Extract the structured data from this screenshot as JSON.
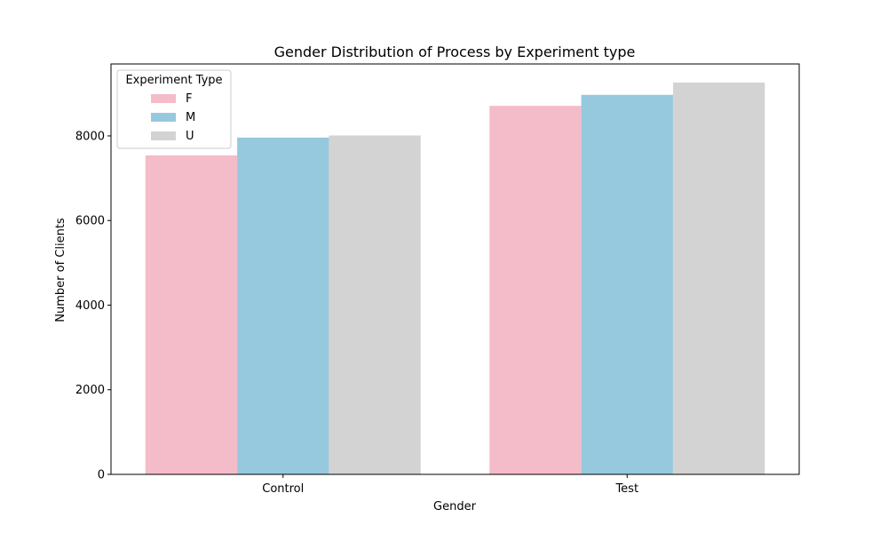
{
  "chart_data": {
    "type": "bar",
    "title": "Gender Distribution of Process by Experiment type",
    "xlabel": "Gender",
    "ylabel": "Number of Clients",
    "categories": [
      "Control",
      "Test"
    ],
    "series": [
      {
        "name": "F",
        "values": [
          7540,
          8710
        ],
        "color": "#f4bcc8"
      },
      {
        "name": "M",
        "values": [
          7960,
          8970
        ],
        "color": "#96c9de"
      },
      {
        "name": "U",
        "values": [
          8010,
          9260
        ],
        "color": "#d3d3d3"
      }
    ],
    "ylim": [
      0,
      9700
    ],
    "yticks": [
      0,
      2000,
      4000,
      6000,
      8000
    ],
    "grid": false,
    "legend": {
      "title": "Experiment Type",
      "position": "top-left"
    }
  }
}
